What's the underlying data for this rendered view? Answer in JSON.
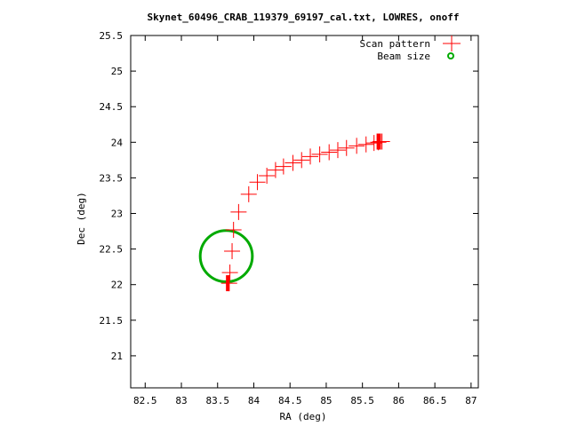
{
  "chart_data": {
    "type": "scatter",
    "title": "Skynet_60496_CRAB_119379_69197_cal.txt, LOWRES, onoff",
    "xlabel": "RA (deg)",
    "ylabel": "Dec (deg)",
    "xlim": [
      82.3,
      87.1
    ],
    "ylim": [
      20.55,
      25.5
    ],
    "x_ticks": [
      "82.5",
      "83",
      "83.5",
      "84",
      "84.5",
      "85",
      "85.5",
      "86",
      "86.5",
      "87"
    ],
    "y_ticks": [
      "21",
      "21.5",
      "22",
      "22.5",
      "23",
      "23.5",
      "24",
      "24.5",
      "25",
      "25.5"
    ],
    "grid": false,
    "legend_position": "top-right",
    "series": [
      {
        "name": "Scan pattern",
        "color": "#ff0000",
        "marker": "plus",
        "x": [
          83.66,
          83.67,
          83.7,
          83.72,
          83.79,
          83.93,
          84.05,
          84.18,
          84.3,
          84.41,
          84.54,
          84.66,
          84.78,
          84.91,
          85.04,
          85.16,
          85.28,
          85.42,
          85.55,
          85.66,
          85.72,
          85.75,
          85.77
        ],
        "y": [
          22.02,
          22.17,
          22.47,
          22.77,
          23.02,
          23.27,
          23.44,
          23.53,
          23.61,
          23.66,
          23.71,
          23.75,
          23.8,
          23.83,
          23.86,
          23.89,
          23.92,
          23.95,
          23.97,
          23.99,
          24.0,
          24.01,
          24.01
        ]
      },
      {
        "name": "Beam size",
        "color": "#00aa00",
        "marker": "circle",
        "center": [
          83.62,
          22.4
        ],
        "radius_deg": 0.36
      }
    ],
    "annotations": []
  }
}
